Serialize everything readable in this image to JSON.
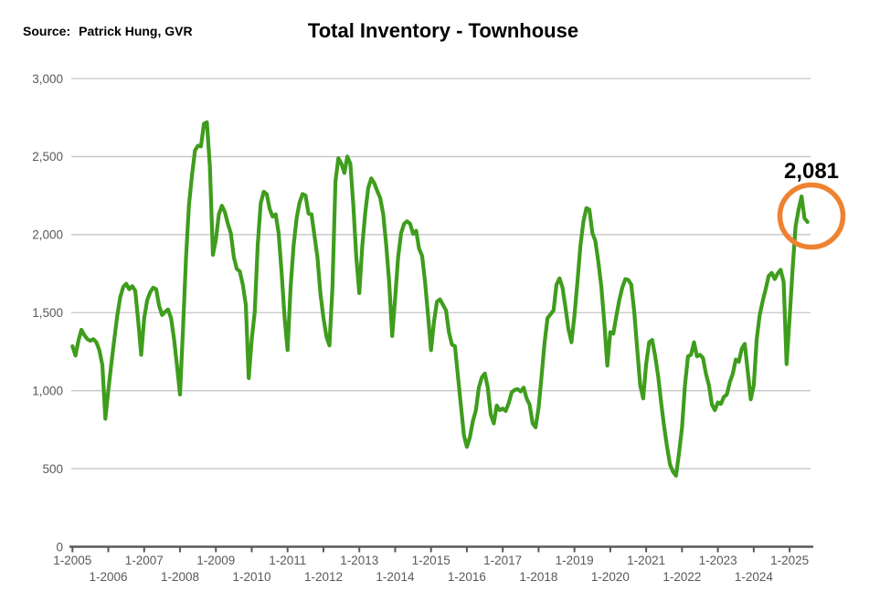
{
  "header": {
    "source_label": "Source:",
    "source_value": "Patrick Hung, GVR",
    "title": "Total Inventory - Townhouse"
  },
  "chart_data": {
    "type": "line",
    "title": "Total Inventory - Townhouse",
    "xlabel": "",
    "ylabel": "",
    "ylim": [
      0,
      3000
    ],
    "grid": "horizontal",
    "legend": "none",
    "x_type": "month",
    "x_start": "2005-01",
    "x_end": "2025-07",
    "x_step_months": 1,
    "x_tick_labels": [
      "1-2005",
      "1-2006",
      "1-2007",
      "1-2008",
      "1-2009",
      "1-2010",
      "1-2011",
      "1-2012",
      "1-2013",
      "1-2014",
      "1-2015",
      "1-2016",
      "1-2017",
      "1-2018",
      "1-2019",
      "1-2020",
      "1-2021",
      "1-2022",
      "1-2023",
      "1-2024",
      "1-2025"
    ],
    "y_ticks": [
      {
        "value": 0,
        "label": "0"
      },
      {
        "value": 500,
        "label": "500"
      },
      {
        "value": 1000,
        "label": "1,000"
      },
      {
        "value": 1500,
        "label": "1,500"
      },
      {
        "value": 2000,
        "label": "2,000"
      },
      {
        "value": 2500,
        "label": "2,500"
      },
      {
        "value": 3000,
        "label": "3,000"
      }
    ],
    "series": [
      {
        "name": "Total Inventory - Townhouse",
        "values": [
          1285,
          1225,
          1320,
          1390,
          1355,
          1330,
          1320,
          1330,
          1310,
          1260,
          1165,
          820,
          1000,
          1170,
          1330,
          1480,
          1600,
          1665,
          1685,
          1650,
          1670,
          1640,
          1450,
          1230,
          1465,
          1580,
          1630,
          1660,
          1650,
          1545,
          1485,
          1505,
          1520,
          1465,
          1330,
          1155,
          975,
          1400,
          1855,
          2190,
          2380,
          2540,
          2570,
          2565,
          2710,
          2720,
          2435,
          1870,
          1970,
          2130,
          2185,
          2145,
          2070,
          2010,
          1855,
          1780,
          1765,
          1680,
          1550,
          1080,
          1330,
          1505,
          1930,
          2200,
          2275,
          2260,
          2165,
          2115,
          2130,
          2010,
          1755,
          1465,
          1260,
          1660,
          1930,
          2105,
          2205,
          2260,
          2250,
          2135,
          2130,
          1990,
          1855,
          1620,
          1465,
          1345,
          1290,
          1660,
          2340,
          2490,
          2455,
          2395,
          2500,
          2455,
          2185,
          1855,
          1625,
          1930,
          2145,
          2300,
          2360,
          2330,
          2280,
          2235,
          2130,
          1930,
          1695,
          1350,
          1600,
          1855,
          2010,
          2070,
          2085,
          2070,
          2005,
          2025,
          1910,
          1865,
          1695,
          1485,
          1260,
          1445,
          1570,
          1585,
          1550,
          1515,
          1375,
          1295,
          1285,
          1095,
          905,
          715,
          640,
          700,
          805,
          875,
          1020,
          1085,
          1110,
          1020,
          845,
          790,
          905,
          875,
          885,
          870,
          920,
          990,
          1005,
          1010,
          995,
          1020,
          950,
          910,
          790,
          765,
          890,
          1095,
          1310,
          1465,
          1490,
          1515,
          1680,
          1720,
          1660,
          1535,
          1395,
          1310,
          1485,
          1695,
          1930,
          2085,
          2170,
          2160,
          2010,
          1960,
          1825,
          1665,
          1430,
          1160,
          1375,
          1365,
          1475,
          1580,
          1660,
          1715,
          1710,
          1680,
          1505,
          1270,
          1035,
          950,
          1170,
          1310,
          1325,
          1225,
          1095,
          925,
          770,
          640,
          525,
          480,
          455,
          600,
          765,
          1035,
          1220,
          1230,
          1310,
          1220,
          1230,
          1210,
          1110,
          1035,
          910,
          875,
          925,
          915,
          960,
          975,
          1055,
          1110,
          1200,
          1185,
          1270,
          1300,
          1125,
          945,
          1035,
          1330,
          1485,
          1575,
          1650,
          1735,
          1755,
          1715,
          1750,
          1775,
          1695,
          1170,
          1465,
          1780,
          2050,
          2160,
          2245,
          2105,
          2081
        ]
      }
    ],
    "annotation": {
      "text": "2,081",
      "value": 2081,
      "month": "2025-07",
      "marker": "circle"
    },
    "colors": {
      "line": "#3F9D1D",
      "grid": "#C6C6C6",
      "axis": "#595959",
      "tick_label": "#595959",
      "annotation_text": "#000000",
      "annotation_circle": "#EE8230",
      "background": "#FFFFFF"
    }
  }
}
